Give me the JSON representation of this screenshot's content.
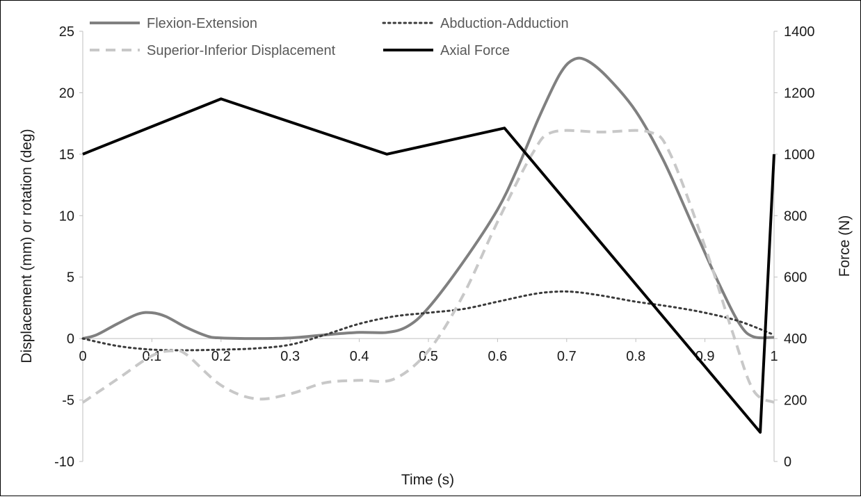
{
  "chart_data": {
    "type": "line",
    "title": "",
    "xlabel": "Time (s)",
    "ylabel": "Displacement (mm) or rotation (deg)",
    "y2label": "Force (N)",
    "xlim": [
      0,
      1
    ],
    "ylim": [
      -10,
      25
    ],
    "y2lim": [
      0,
      1400
    ],
    "x_ticks": [
      "0",
      "0.1",
      "0.2",
      "0.3",
      "0.4",
      "0.5",
      "0.6",
      "0.7",
      "0.8",
      "0.9",
      "1"
    ],
    "y_ticks": [
      "-10",
      "-5",
      "0",
      "5",
      "10",
      "15",
      "20",
      "25"
    ],
    "y2_ticks": [
      "0",
      "200",
      "400",
      "600",
      "800",
      "1000",
      "1200",
      "1400"
    ],
    "grid": false,
    "legend_position": "top",
    "series": [
      {
        "name": "Flexion-Extension",
        "axis": "left",
        "color": "#808080",
        "style": "solid",
        "x": [
          0,
          0.02,
          0.05,
          0.08,
          0.1,
          0.12,
          0.15,
          0.18,
          0.2,
          0.25,
          0.3,
          0.35,
          0.4,
          0.44,
          0.47,
          0.5,
          0.55,
          0.6,
          0.63,
          0.66,
          0.69,
          0.71,
          0.73,
          0.76,
          0.8,
          0.84,
          0.88,
          0.92,
          0.95,
          0.97,
          1
        ],
        "y": [
          0,
          0.3,
          1.2,
          2.0,
          2.1,
          1.8,
          0.9,
          0.2,
          0.05,
          0.0,
          0.05,
          0.3,
          0.5,
          0.5,
          1.0,
          2.5,
          6.2,
          10.5,
          14.0,
          18.0,
          21.5,
          22.7,
          22.6,
          21.2,
          18.5,
          14.5,
          9.5,
          4.5,
          1.2,
          0.15,
          0.1
        ]
      },
      {
        "name": "Abduction-Adduction",
        "axis": "left",
        "color": "#3a3a3a",
        "style": "dotted",
        "x": [
          0,
          0.05,
          0.1,
          0.15,
          0.2,
          0.25,
          0.3,
          0.35,
          0.4,
          0.45,
          0.5,
          0.55,
          0.6,
          0.65,
          0.68,
          0.71,
          0.75,
          0.8,
          0.85,
          0.9,
          0.95,
          1
        ],
        "y": [
          0,
          -0.6,
          -0.9,
          -0.95,
          -0.9,
          -0.8,
          -0.5,
          0.3,
          1.2,
          1.8,
          2.1,
          2.4,
          3.0,
          3.6,
          3.8,
          3.8,
          3.5,
          3.0,
          2.6,
          2.1,
          1.4,
          0.3
        ]
      },
      {
        "name": "Superior-Inferior Displacement",
        "axis": "left",
        "color": "#c8c8c8",
        "style": "dashed",
        "x": [
          0,
          0.05,
          0.1,
          0.13,
          0.15,
          0.2,
          0.25,
          0.3,
          0.35,
          0.4,
          0.45,
          0.5,
          0.55,
          0.6,
          0.65,
          0.68,
          0.75,
          0.82,
          0.85,
          0.9,
          0.94,
          0.97,
          1
        ],
        "y": [
          -5.2,
          -3.3,
          -1.4,
          -1.0,
          -1.3,
          -3.8,
          -4.9,
          -4.5,
          -3.6,
          -3.4,
          -3.3,
          -1.0,
          3.5,
          9.5,
          15.0,
          16.8,
          16.8,
          16.8,
          15.0,
          7.5,
          0.5,
          -4.2,
          -5.2
        ]
      },
      {
        "name": "Axial Force",
        "axis": "right",
        "color": "#000000",
        "style": "solid",
        "x": [
          0,
          0.2,
          0.44,
          0.61,
          0.98,
          1
        ],
        "y": [
          1000,
          1180,
          1000,
          1085,
          95,
          1000
        ]
      }
    ]
  }
}
